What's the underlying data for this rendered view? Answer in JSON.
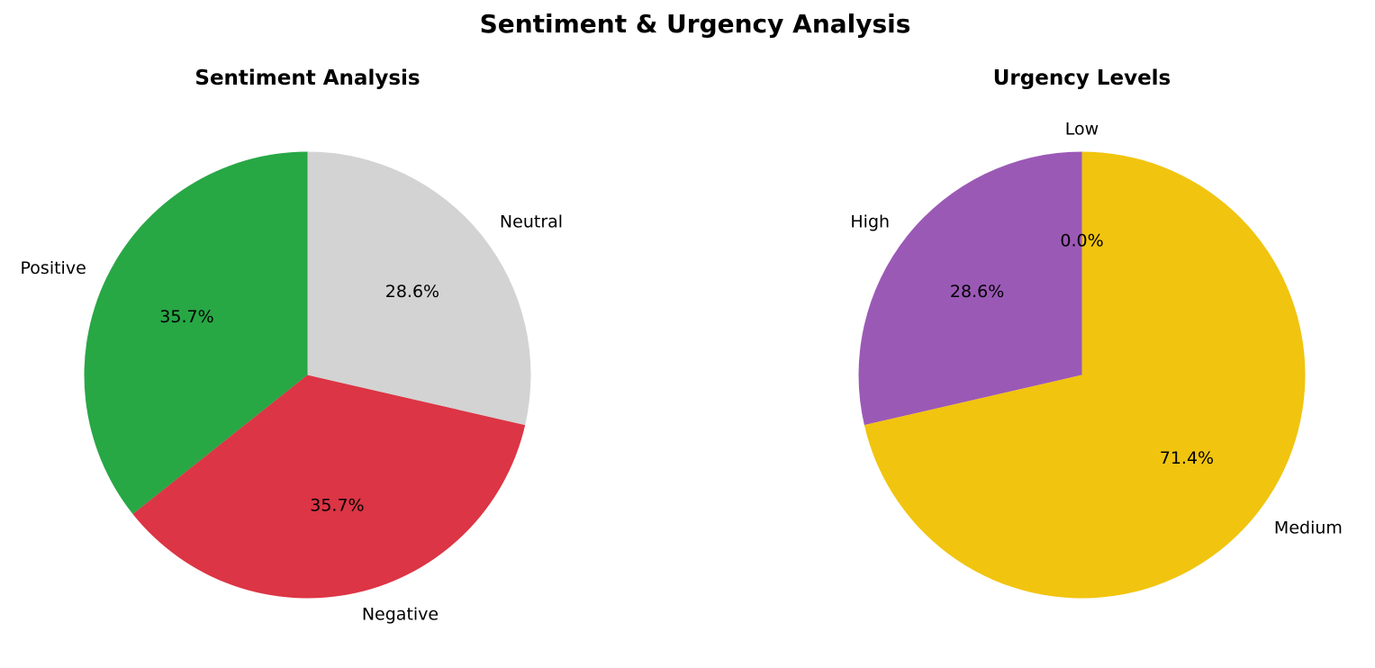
{
  "figure_title": "Sentiment & Urgency Analysis",
  "chart_data": [
    {
      "type": "pie",
      "title": "Sentiment Analysis",
      "start_angle": 90,
      "direction": "counterclockwise",
      "slices": [
        {
          "label": "Positive",
          "value": 35.7,
          "pct_label": "35.7%",
          "color": "#28a745"
        },
        {
          "label": "Negative",
          "value": 35.7,
          "pct_label": "35.7%",
          "color": "#dc3545"
        },
        {
          "label": "Neutral",
          "value": 28.6,
          "pct_label": "28.6%",
          "color": "#d3d3d3"
        }
      ]
    },
    {
      "type": "pie",
      "title": "Urgency Levels",
      "start_angle": 90,
      "direction": "counterclockwise",
      "slices": [
        {
          "label": "High",
          "value": 28.6,
          "pct_label": "28.6%",
          "color": "#9b59b6"
        },
        {
          "label": "Medium",
          "value": 71.4,
          "pct_label": "71.4%",
          "color": "#f1c40f"
        },
        {
          "label": "Low",
          "value": 0.0,
          "pct_label": "0.0%",
          "color": "#e74c3c"
        }
      ]
    }
  ]
}
